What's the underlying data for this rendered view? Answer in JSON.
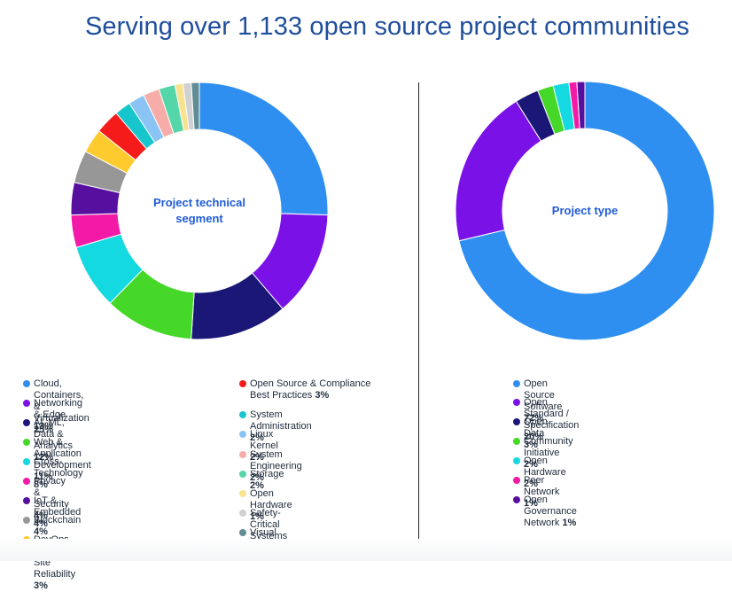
{
  "title": "Serving over 1,133 open source project communities",
  "chart_data": [
    {
      "type": "pie",
      "center_label": "Project technical segment",
      "slices": [
        {
          "label": "Cloud, Containers, & Virtualization",
          "value_label": "25%",
          "value": 25,
          "color": "#2f8ff0"
        },
        {
          "label": "Networking & Edge",
          "value_label": "13%",
          "value": 13,
          "color": "#7a12e8"
        },
        {
          "label": "AI, ML, Data & Analytics",
          "value_label": "12%",
          "value": 12,
          "color": "#1b1777"
        },
        {
          "label": "Web & Application Development",
          "value_label": "11%",
          "value": 11,
          "color": "#45d829"
        },
        {
          "label": "Cross-Technology",
          "value_label": "8%",
          "value": 8,
          "color": "#14d9e0"
        },
        {
          "label": "Privacy & Security",
          "value_label": "4%",
          "value": 4,
          "color": "#f41aa8"
        },
        {
          "label": "IoT & Embedded",
          "value_label": "4%",
          "value": 4,
          "color": "#560f9e"
        },
        {
          "label": "Blockchain",
          "value_label": "4%",
          "value": 4,
          "color": "#979797"
        },
        {
          "label": "DevOps, CI/CD, & Site Reliability",
          "value_label": "3%",
          "value": 3,
          "color": "#fdcb2e"
        },
        {
          "label": "Open Source & Compliance Best Practices",
          "value_label": "3%",
          "value": 3,
          "color": "#f51b1b"
        },
        {
          "label": "System Administration",
          "value_label": "2%",
          "value": 2,
          "color": "#17c6cc"
        },
        {
          "label": "Linux Kernel",
          "value_label": "2%",
          "value": 2,
          "color": "#89c4f4"
        },
        {
          "label": "System Engineering",
          "value_label": "2%",
          "value": 2,
          "color": "#f6aca8"
        },
        {
          "label": "Storage",
          "value_label": "2%",
          "value": 2,
          "color": "#54d6a8"
        },
        {
          "label": "Open Hardware",
          "value_label": "1%",
          "value": 1,
          "color": "#f8e28e"
        },
        {
          "label": "Safety-Critical Systems",
          "value_label": "1%",
          "value": 1,
          "color": "#d1d1d1"
        },
        {
          "label": "Visual Effects",
          "value_label": "1%",
          "value": 1,
          "color": "#5f8c95"
        }
      ]
    },
    {
      "type": "pie",
      "center_label": "Project type",
      "slices": [
        {
          "label": "Open Source Software",
          "value_label": "72%",
          "value": 72,
          "color": "#2f8ff0"
        },
        {
          "label": "Open Standard / Specification",
          "value_label": "20%",
          "value": 20,
          "color": "#7a12e8"
        },
        {
          "label": "Open Data",
          "value_label": "3%",
          "value": 3,
          "color": "#1b1777"
        },
        {
          "label": "Community Initiative",
          "value_label": "2%",
          "value": 2,
          "color": "#45d829"
        },
        {
          "label": "Open Hardware",
          "value_label": "2%",
          "value": 2,
          "color": "#14d9e0"
        },
        {
          "label": "Peer Network",
          "value_label": "1%",
          "value": 1,
          "color": "#f41aa8"
        },
        {
          "label": "Open Governance Network",
          "value_label": "1%",
          "value": 1,
          "color": "#560f9e"
        }
      ]
    }
  ]
}
